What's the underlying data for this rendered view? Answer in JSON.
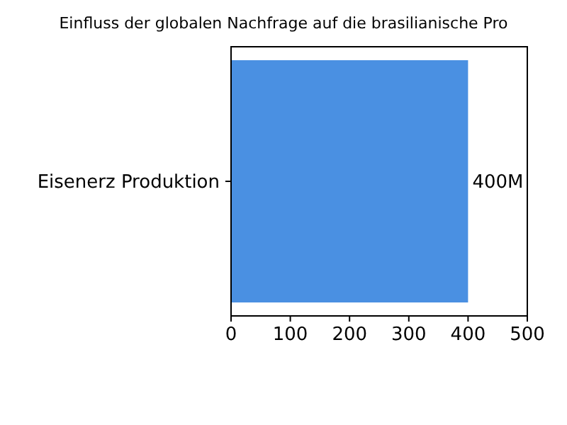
{
  "chart_data": {
    "type": "bar",
    "orientation": "horizontal",
    "title": "Einfluss der globalen Nachfrage auf die brasilianische Pro",
    "categories": [
      "Eisenerz Produktion"
    ],
    "values": [
      400
    ],
    "value_labels": [
      "400M"
    ],
    "color": "#4a90e2",
    "xlim": [
      0,
      500
    ],
    "xticks": [
      0,
      100,
      200,
      300,
      400,
      500
    ],
    "grid": false
  }
}
